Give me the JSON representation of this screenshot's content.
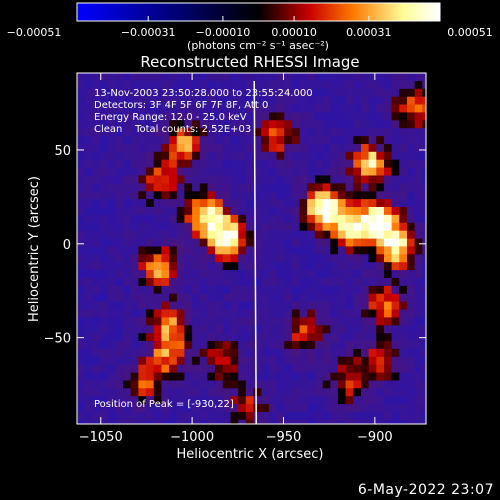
{
  "chart_data": {
    "type": "heatmap",
    "title": "Reconstructed RHESSI Image",
    "xlabel": "Heliocentric X (arcsec)",
    "ylabel": "Heliocentric Y (arcsec)",
    "xlim": [
      -1063,
      -872
    ],
    "ylim": [
      -96,
      91
    ],
    "x_ticks": [
      {
        "value": -1050,
        "label": "−1050"
      },
      {
        "value": -1000,
        "label": "−1000"
      },
      {
        "value": -950,
        "label": "−950"
      },
      {
        "value": -900,
        "label": "−900"
      }
    ],
    "y_ticks": [
      {
        "value": 50,
        "label": "50"
      },
      {
        "value": 0,
        "label": "0"
      },
      {
        "value": -50,
        "label": "−50"
      }
    ],
    "colorbar": {
      "range": [
        -0.00051,
        0.00051
      ],
      "ticks": [
        {
          "value": -0.00051,
          "label": "−0.00051"
        },
        {
          "value": -0.00031,
          "label": "−0.00031"
        },
        {
          "value": -0.0001,
          "label": "−0.00010"
        },
        {
          "value": 0.0001,
          "label": "0.00010"
        },
        {
          "value": 0.00031,
          "label": "0.00031"
        },
        {
          "value": 0.00051,
          "label": "0.00051"
        }
      ],
      "unit_label": "(photons cm⁻² s⁻¹ asec⁻²)",
      "colormap": [
        "#0000ff",
        "#000000",
        "#c80000",
        "#ff7800",
        "#ffff9a",
        "#ffffff"
      ]
    },
    "annotations": [
      "13-Nov-2003 23:50:28.000 to 23:55:24.000",
      "Detectors: 3F 4F 5F 6F 7F 8F, Att 0",
      "Energy Range: 12.0 - 25.0 keV",
      "Clean    Total counts: 2.52E+03"
    ],
    "peak_label": "Position of Peak = [-930,22]",
    "limb_line_x": -966,
    "peak": {
      "x": -930,
      "y": 22
    },
    "grid": false,
    "hot_spots": [
      {
        "x": -1007,
        "y": 55,
        "value": 0.00032
      },
      {
        "x": -1020,
        "y": 35,
        "value": 0.00022
      },
      {
        "x": -995,
        "y": 18,
        "value": 0.0004
      },
      {
        "x": -983,
        "y": 5,
        "value": 0.00048
      },
      {
        "x": -1020,
        "y": -10,
        "value": 0.00032
      },
      {
        "x": -1015,
        "y": -40,
        "value": 0.00022
      },
      {
        "x": -1015,
        "y": -57,
        "value": 0.00024
      },
      {
        "x": -1028,
        "y": -72,
        "value": 0.00018
      },
      {
        "x": -985,
        "y": -60,
        "value": 0.00018
      },
      {
        "x": -972,
        "y": -85,
        "value": 0.00014
      },
      {
        "x": -955,
        "y": 60,
        "value": 0.00022
      },
      {
        "x": -930,
        "y": 22,
        "value": 0.00051
      },
      {
        "x": -916,
        "y": 10,
        "value": 0.00036
      },
      {
        "x": -905,
        "y": 45,
        "value": 0.0004
      },
      {
        "x": -900,
        "y": 15,
        "value": 0.00044
      },
      {
        "x": -890,
        "y": 0,
        "value": 0.00042
      },
      {
        "x": -897,
        "y": -30,
        "value": 0.00026
      },
      {
        "x": -940,
        "y": -45,
        "value": 0.0002
      },
      {
        "x": -900,
        "y": -60,
        "value": 0.00018
      },
      {
        "x": -918,
        "y": -72,
        "value": 0.00016
      },
      {
        "x": -880,
        "y": 75,
        "value": 0.00024
      }
    ]
  },
  "footer": {
    "date_stamp": "6-May-2022 23:07"
  }
}
